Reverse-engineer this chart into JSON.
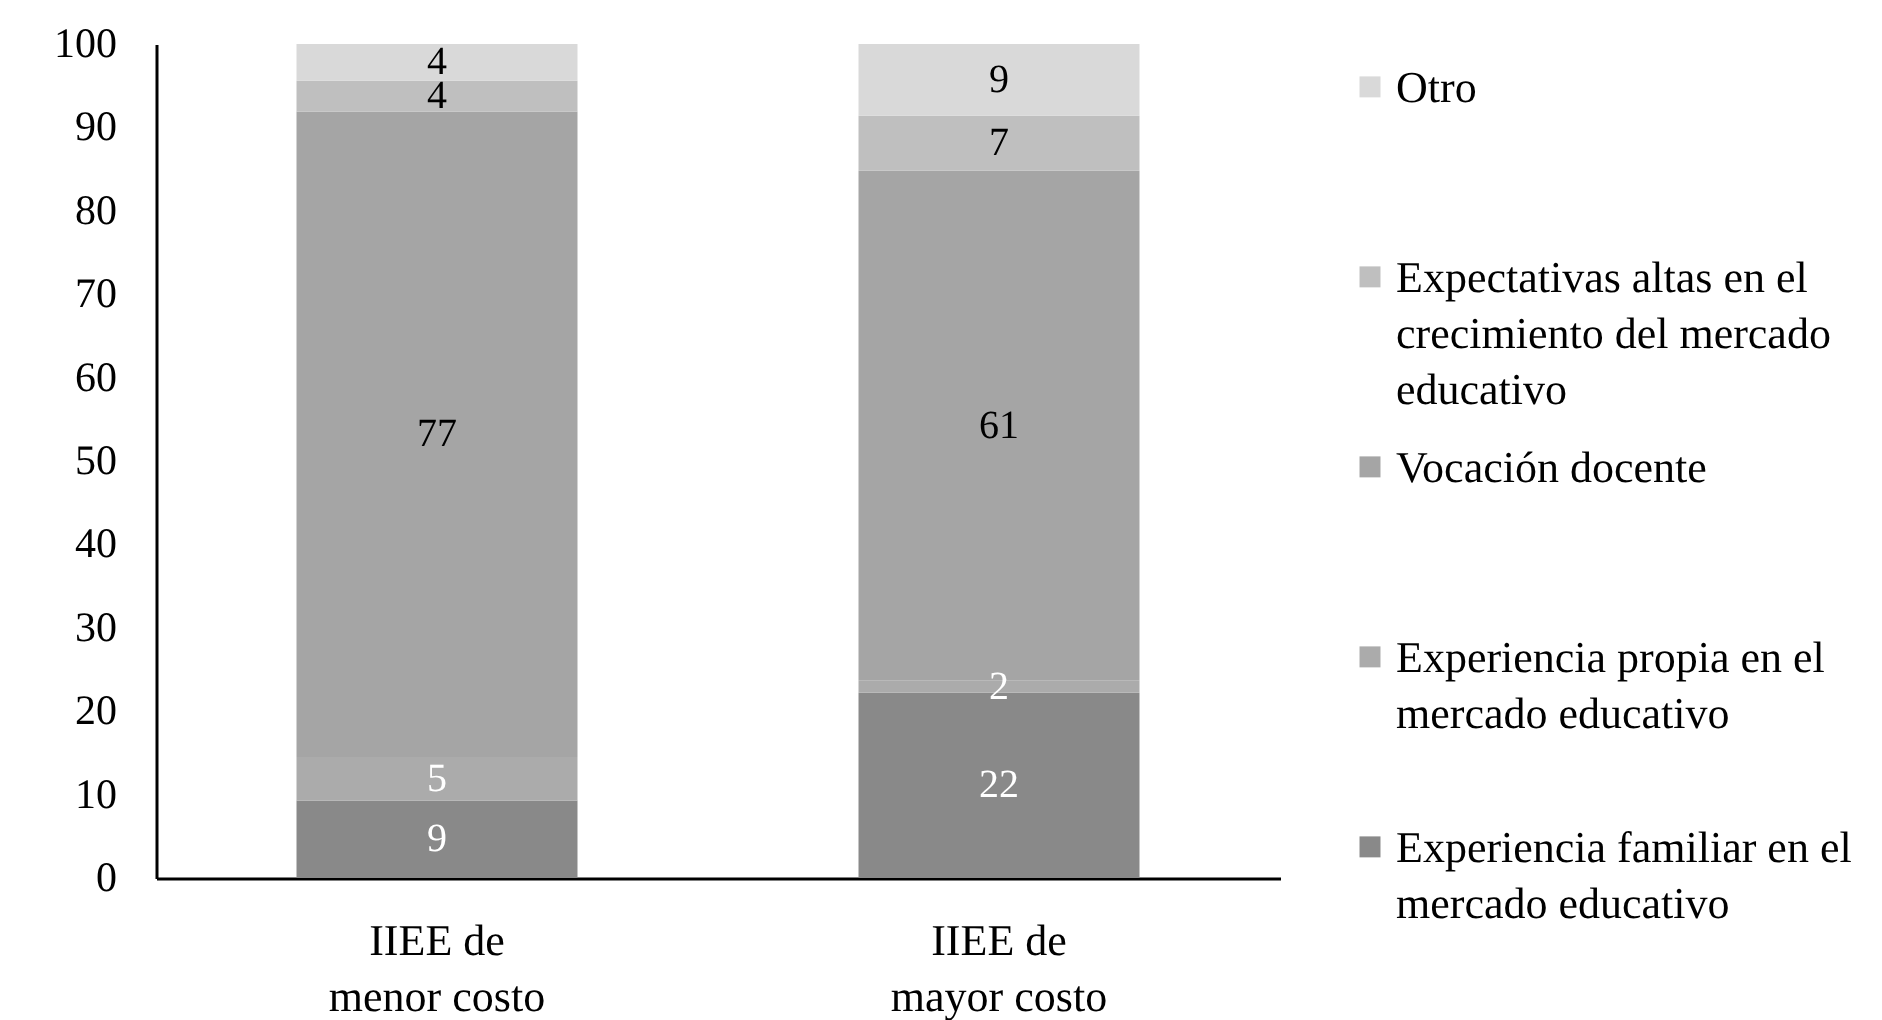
{
  "chart_data": {
    "type": "bar",
    "stacked": true,
    "categories": [
      "IIEE de menor costo",
      "IIEE de mayor costo"
    ],
    "series": [
      {
        "name": "Experiencia familiar en el mercado educativo",
        "color": "#898989",
        "values": [
          9.3,
          22.2
        ],
        "value_labels": [
          "9",
          "22"
        ]
      },
      {
        "name": "Experiencia propia en el mercado educativo",
        "color": "#ababab",
        "values": [
          5.2,
          1.5
        ],
        "value_labels": [
          "5",
          "2"
        ]
      },
      {
        "name": "Vocación docente",
        "color": "#a5a5a5",
        "values": [
          77.4,
          61.1
        ],
        "value_labels": [
          "77",
          "61"
        ]
      },
      {
        "name": "Expectativas altas en el crecimiento del mercado educativo",
        "color": "#bfbfbf",
        "values": [
          3.7,
          6.6
        ],
        "value_labels": [
          "4",
          "7"
        ]
      },
      {
        "name": "Otro",
        "color": "#d9d9d9",
        "values": [
          4.4,
          8.6
        ],
        "value_labels": [
          "4",
          "9"
        ]
      }
    ],
    "ylim": [
      0,
      100
    ],
    "yticks": [
      0,
      10,
      20,
      30,
      40,
      50,
      60,
      70,
      80,
      90,
      100
    ],
    "grid": false,
    "legend": "right"
  }
}
